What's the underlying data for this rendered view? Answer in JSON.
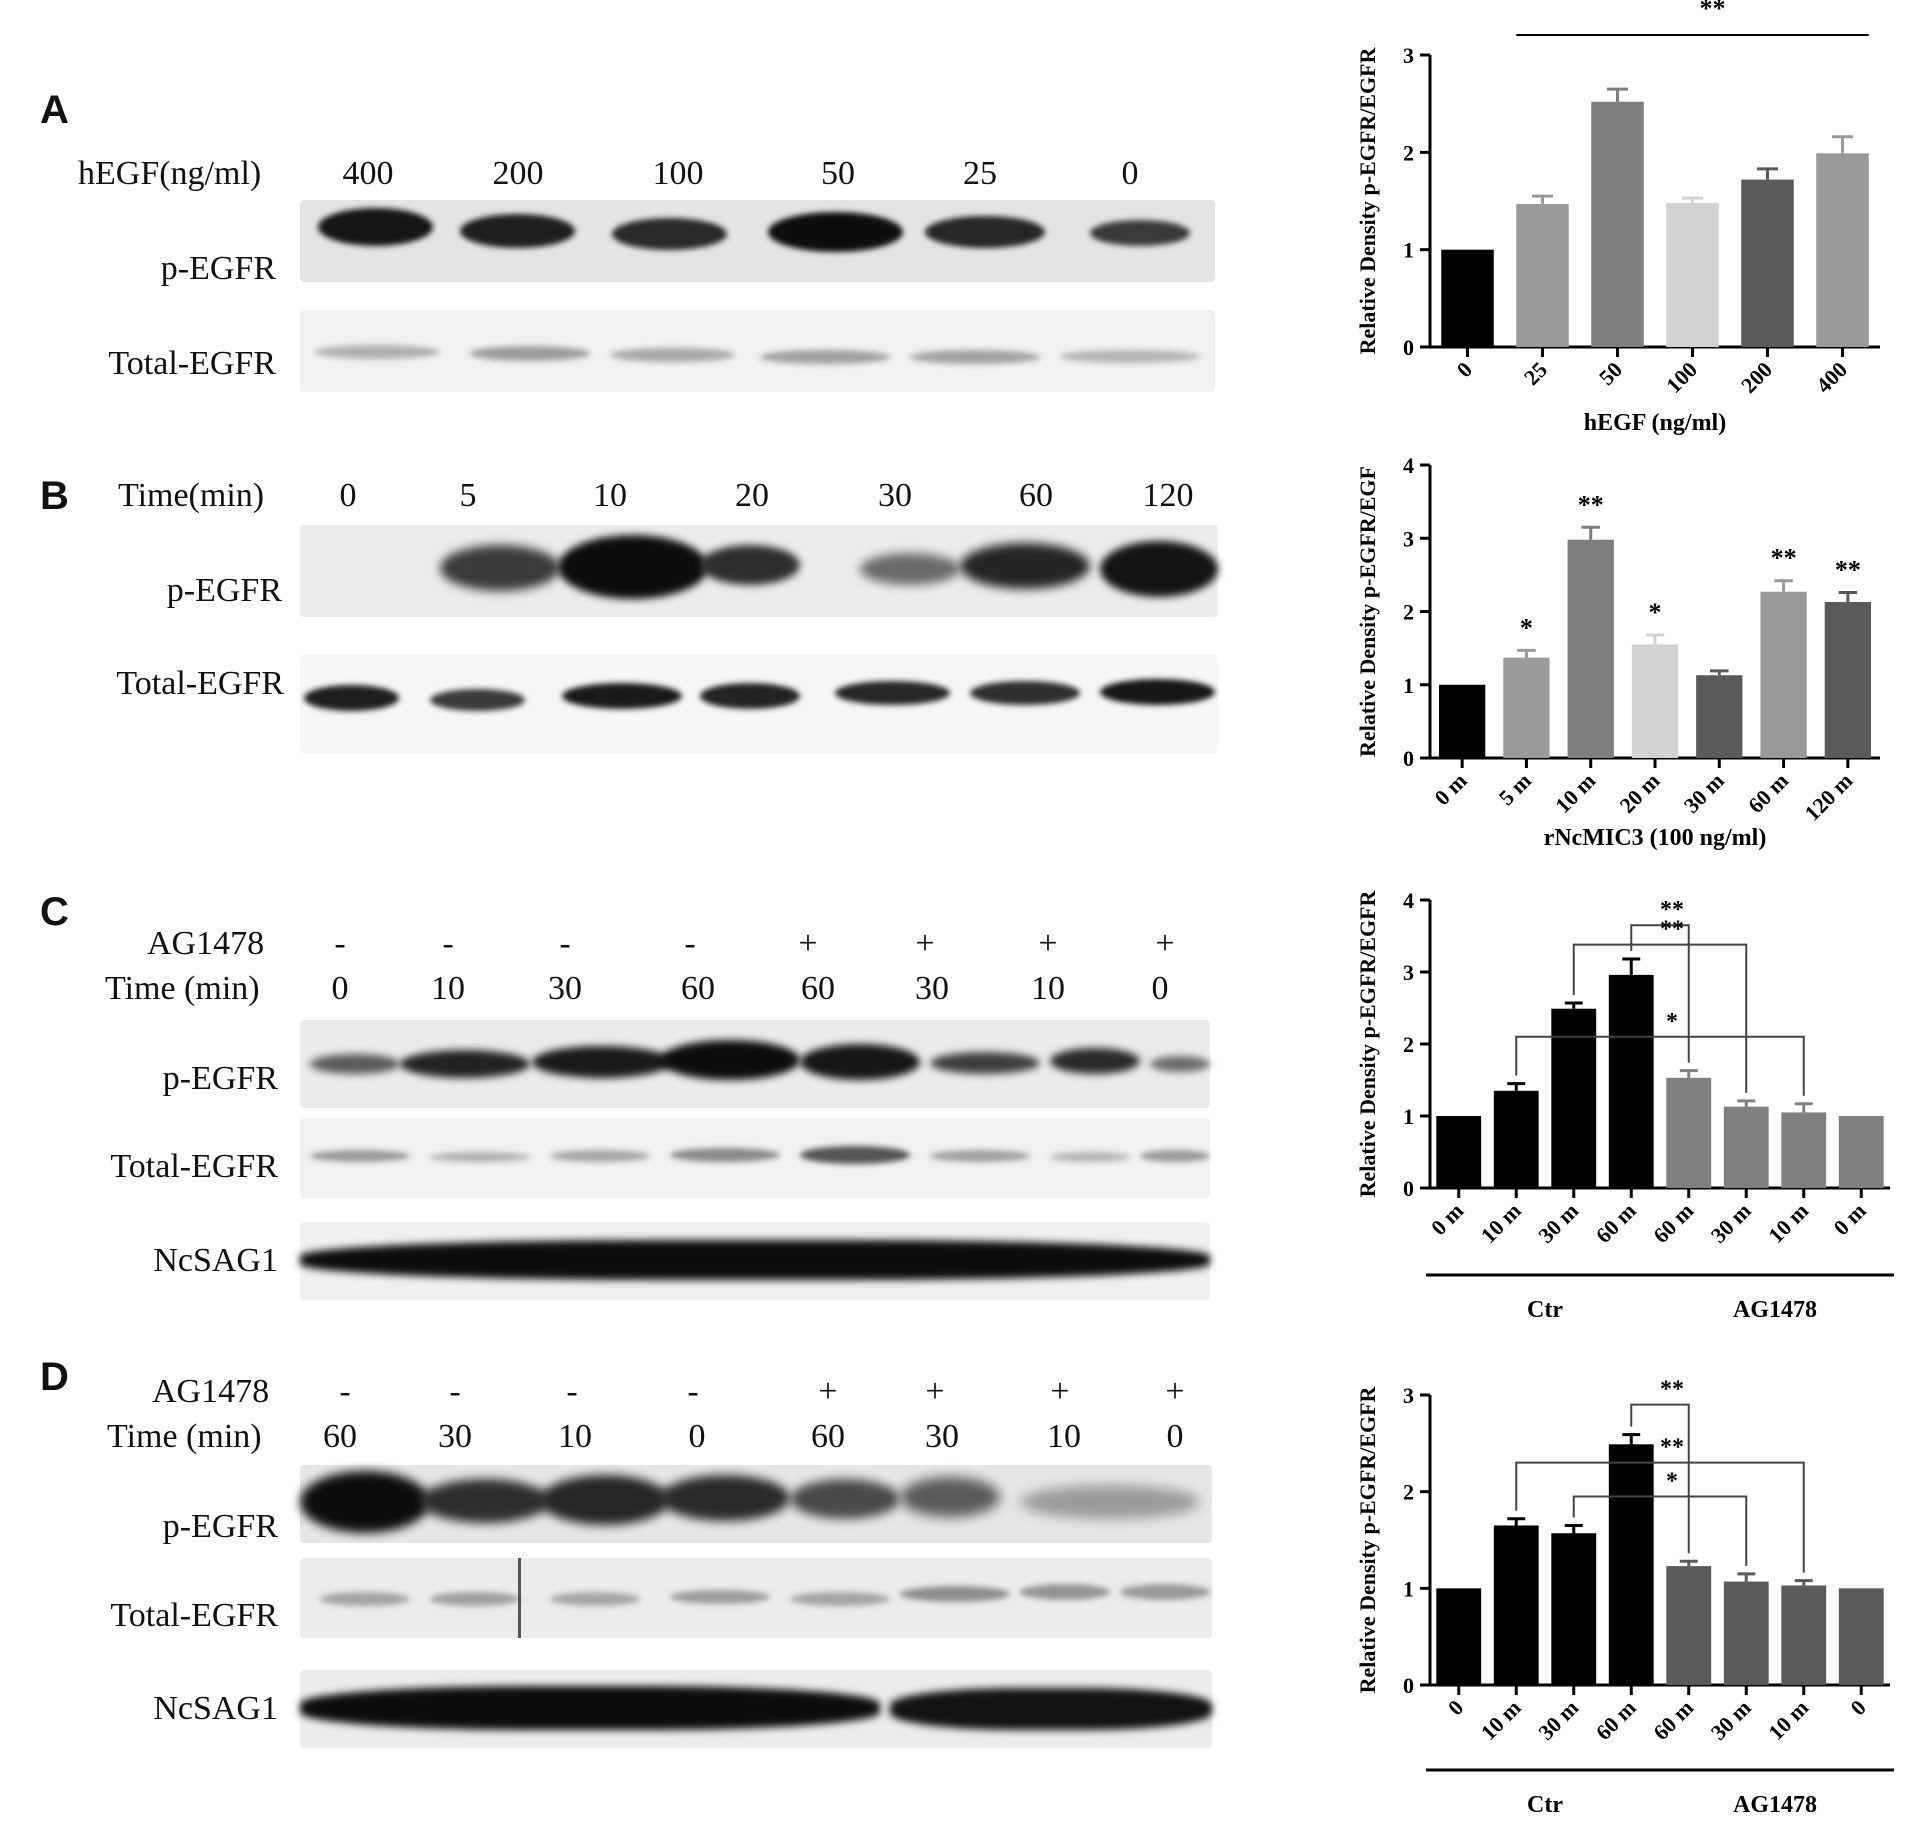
{
  "panels": [
    {
      "letter": "A",
      "blot": {
        "header_rows": [
          {
            "label": "hEGF(ng/ml)",
            "lanes": [
              "400",
              "200",
              "100",
              "50",
              "25",
              "0"
            ]
          }
        ],
        "row_labels": [
          "p-EGFR",
          "Total-EGFR"
        ]
      }
    },
    {
      "letter": "B",
      "blot": {
        "header_rows": [
          {
            "label": "Time(min)",
            "lanes": [
              "0",
              "5",
              "10",
              "20",
              "30",
              "60",
              "120"
            ]
          }
        ],
        "row_labels": [
          "p-EGFR",
          "Total-EGFR"
        ]
      }
    },
    {
      "letter": "C",
      "blot": {
        "header_rows": [
          {
            "label": "AG1478",
            "lanes": [
              "-",
              "-",
              "-",
              "-",
              "+",
              "+",
              "+",
              "+"
            ]
          },
          {
            "label": "Time (min)",
            "lanes": [
              "0",
              "10",
              "30",
              "60",
              "60",
              "30",
              "10",
              "0"
            ]
          }
        ],
        "row_labels": [
          "p-EGFR",
          "Total-EGFR",
          "NcSAG1"
        ]
      }
    },
    {
      "letter": "D",
      "blot": {
        "header_rows": [
          {
            "label": "AG1478",
            "lanes": [
              "-",
              "-",
              "-",
              "-",
              "+",
              "+",
              "+",
              "+"
            ]
          },
          {
            "label": "Time (min)",
            "lanes": [
              "60",
              "30",
              "10",
              "0",
              "60",
              "30",
              "10",
              "0"
            ]
          }
        ],
        "row_labels": [
          "p-EGFR",
          "Total-EGFR",
          "NcSAG1"
        ]
      }
    }
  ],
  "chart_data": [
    {
      "type": "bar",
      "ylabel": "Relative Density p-EGFR/EGFR",
      "xlabel": "hEGF (ng/ml)",
      "categories": [
        "0",
        "25",
        "50",
        "100",
        "200",
        "400"
      ],
      "values": [
        1.0,
        1.47,
        2.52,
        1.48,
        1.72,
        1.99
      ],
      "errors": [
        0,
        0.08,
        0.13,
        0.05,
        0.11,
        0.17
      ],
      "colors": [
        "#000000",
        "#9a9a9a",
        "#7e7e7e",
        "#d2d2d2",
        "#5a5a5a",
        "#999999"
      ],
      "ylim": [
        0,
        3
      ],
      "yticks": [
        "0",
        "1",
        "2",
        "3"
      ],
      "annotations": [
        {
          "text": "**",
          "from": 1,
          "to": 5
        }
      ]
    },
    {
      "type": "bar",
      "ylabel": "Relative Density p-EGFR/EGF",
      "xlabel": "rNcMIC3 (100 ng/ml)",
      "categories": [
        "0 m",
        "5 m",
        "10 m",
        "20 m",
        "30 m",
        "60 m",
        "120 m"
      ],
      "values": [
        1.0,
        1.37,
        2.98,
        1.55,
        1.13,
        2.27,
        2.13
      ],
      "errors": [
        0,
        0.1,
        0.17,
        0.13,
        0.06,
        0.15,
        0.13
      ],
      "colors": [
        "#000000",
        "#9a9a9a",
        "#7e7e7e",
        "#d2d2d2",
        "#5a5a5a",
        "#999999",
        "#5a5a5a"
      ],
      "ylim": [
        0,
        4
      ],
      "yticks": [
        "0",
        "1",
        "2",
        "3",
        "4"
      ],
      "bar_marks": [
        "",
        "*",
        "**",
        "*",
        "",
        "**",
        "**"
      ]
    },
    {
      "type": "bar",
      "ylabel": "Relative Density p-EGFR/EGFR",
      "xlabel": "",
      "categories": [
        "0 m",
        "10 m",
        "30 m",
        "60 m",
        "60 m",
        "30 m",
        "10 m",
        "0 m"
      ],
      "values": [
        1.0,
        1.35,
        2.49,
        2.96,
        1.53,
        1.13,
        1.05,
        1.0
      ],
      "errors": [
        0,
        0.1,
        0.08,
        0.22,
        0.1,
        0.08,
        0.12,
        0
      ],
      "colors": [
        "#000000",
        "#000000",
        "#000000",
        "#000000",
        "#808080",
        "#808080",
        "#808080",
        "#808080"
      ],
      "ylim": [
        0,
        4
      ],
      "yticks": [
        "0",
        "1",
        "2",
        "3",
        "4"
      ],
      "groups": [
        {
          "label": "Ctr",
          "from": 0,
          "to": 3
        },
        {
          "label": "AG1478",
          "from": 4,
          "to": 7
        }
      ],
      "brackets": [
        {
          "from": 3,
          "to": 4,
          "text": "**",
          "level": 3.65
        },
        {
          "from": 2,
          "to": 5,
          "text": "**",
          "level": 3.38
        },
        {
          "from": 1,
          "to": 6,
          "text": "*",
          "level": 2.1
        }
      ]
    },
    {
      "type": "bar",
      "ylabel": "Relative Density p-EGFR/EGFR",
      "xlabel": "",
      "categories": [
        "0",
        "10 m",
        "30 m",
        "60 m",
        "60 m",
        "30 m",
        "10 m",
        "0"
      ],
      "values": [
        1.0,
        1.65,
        1.57,
        2.49,
        1.23,
        1.07,
        1.03,
        1.0
      ],
      "errors": [
        0,
        0.07,
        0.08,
        0.1,
        0.05,
        0.08,
        0.05,
        0
      ],
      "colors": [
        "#000000",
        "#000000",
        "#000000",
        "#000000",
        "#5a5a5a",
        "#5a5a5a",
        "#5a5a5a",
        "#5a5a5a"
      ],
      "ylim": [
        0,
        3
      ],
      "yticks": [
        "0",
        "1",
        "2",
        "3"
      ],
      "groups": [
        {
          "label": "Ctr",
          "from": 0,
          "to": 3
        },
        {
          "label": "AG1478",
          "from": 4,
          "to": 7
        }
      ],
      "brackets": [
        {
          "from": 3,
          "to": 4,
          "text": "**",
          "level": 2.9
        },
        {
          "from": 1,
          "to": 6,
          "text": "**",
          "level": 2.3
        },
        {
          "from": 2,
          "to": 5,
          "text": "*",
          "level": 1.95
        }
      ]
    }
  ]
}
